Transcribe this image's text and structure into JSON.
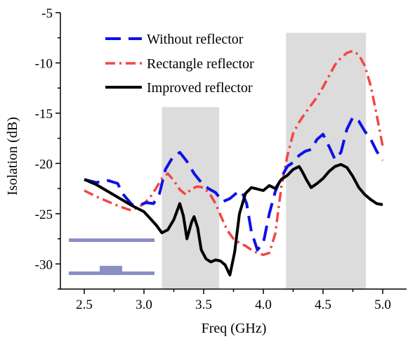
{
  "chart_data": {
    "type": "line",
    "xlabel": "Freq (GHz)",
    "ylabel": "Isolation (dB)",
    "xlim": [
      2.3,
      5.2
    ],
    "ylim": [
      -32.5,
      -5
    ],
    "xticks": [
      "2.5",
      "3.0",
      "3.5",
      "4.0",
      "4.5",
      "5.0"
    ],
    "yticks": [
      "-5",
      "-10",
      "-15",
      "-20",
      "-25",
      "-30"
    ],
    "grid": false,
    "legend_position": "top-left",
    "shaded_bands": [
      {
        "x0": 3.15,
        "x1": 3.63,
        "y0": -32.5,
        "y1": -14.4
      },
      {
        "x0": 4.19,
        "x1": 4.86,
        "y0": -32.5,
        "y1": -7.0
      }
    ],
    "series": [
      {
        "name": "Without reflector",
        "color": "#1010e8",
        "style": "dash",
        "x": [
          2.5,
          2.6,
          2.7,
          2.78,
          2.82,
          2.9,
          2.97,
          3.02,
          3.08,
          3.13,
          3.18,
          3.24,
          3.3,
          3.36,
          3.42,
          3.48,
          3.54,
          3.6,
          3.66,
          3.72,
          3.78,
          3.82,
          3.86,
          3.9,
          3.95,
          4.0,
          4.05,
          4.1,
          4.15,
          4.2,
          4.25,
          4.3,
          4.35,
          4.4,
          4.45,
          4.5,
          4.55,
          4.6,
          4.65,
          4.7,
          4.75,
          4.8,
          4.85,
          4.9,
          4.95,
          5.0
        ],
        "y": [
          -21.6,
          -21.9,
          -21.7,
          -22.0,
          -23.0,
          -24.1,
          -24.1,
          -23.9,
          -24.0,
          -23.0,
          -20.6,
          -19.4,
          -18.9,
          -19.8,
          -21.0,
          -21.9,
          -22.5,
          -22.9,
          -23.8,
          -23.5,
          -22.9,
          -22.8,
          -24.0,
          -26.8,
          -28.6,
          -27.9,
          -25.0,
          -22.8,
          -21.4,
          -20.3,
          -19.9,
          -19.2,
          -18.8,
          -18.6,
          -17.6,
          -17.1,
          -18.3,
          -19.6,
          -18.9,
          -16.6,
          -15.4,
          -15.8,
          -16.8,
          -17.6,
          -18.8,
          -19.7
        ]
      },
      {
        "name": "Rectangle reflector",
        "color": "#f24646",
        "style": "dashdot",
        "x": [
          2.5,
          2.6,
          2.7,
          2.8,
          2.9,
          3.0,
          3.05,
          3.1,
          3.15,
          3.2,
          3.25,
          3.3,
          3.35,
          3.4,
          3.45,
          3.5,
          3.55,
          3.6,
          3.65,
          3.7,
          3.75,
          3.8,
          3.85,
          3.9,
          3.95,
          4.0,
          4.05,
          4.1,
          4.15,
          4.2,
          4.25,
          4.3,
          4.35,
          4.4,
          4.45,
          4.5,
          4.55,
          4.6,
          4.65,
          4.7,
          4.75,
          4.8,
          4.85,
          4.9,
          4.95,
          5.0
        ],
        "y": [
          -22.7,
          -23.3,
          -23.8,
          -24.3,
          -24.7,
          -24.0,
          -23.4,
          -22.5,
          -21.5,
          -21.0,
          -21.7,
          -22.6,
          -23.1,
          -22.5,
          -22.3,
          -22.4,
          -23.0,
          -24.0,
          -25.4,
          -26.7,
          -27.5,
          -27.9,
          -28.2,
          -28.6,
          -28.9,
          -29.1,
          -28.9,
          -27.0,
          -22.4,
          -19.3,
          -17.0,
          -15.9,
          -15.0,
          -14.2,
          -13.4,
          -12.4,
          -11.3,
          -10.2,
          -9.5,
          -9.0,
          -8.8,
          -9.2,
          -10.3,
          -12.3,
          -15.2,
          -18.3
        ]
      },
      {
        "name": "Improved reflector",
        "color": "#000000",
        "style": "solid",
        "x": [
          2.5,
          2.6,
          2.7,
          2.8,
          2.9,
          3.0,
          3.1,
          3.15,
          3.2,
          3.25,
          3.3,
          3.33,
          3.36,
          3.4,
          3.42,
          3.45,
          3.48,
          3.52,
          3.56,
          3.6,
          3.64,
          3.68,
          3.72,
          3.76,
          3.8,
          3.85,
          3.9,
          4.0,
          4.05,
          4.1,
          4.15,
          4.2,
          4.25,
          4.3,
          4.33,
          4.36,
          4.4,
          4.45,
          4.5,
          4.55,
          4.6,
          4.65,
          4.7,
          4.75,
          4.8,
          4.85,
          4.9,
          4.95,
          5.0
        ],
        "y": [
          -21.6,
          -22.1,
          -22.8,
          -23.5,
          -24.2,
          -24.8,
          -26.1,
          -26.9,
          -26.6,
          -25.6,
          -24.0,
          -25.2,
          -27.5,
          -25.8,
          -25.3,
          -26.4,
          -28.6,
          -29.5,
          -29.8,
          -29.6,
          -29.7,
          -30.1,
          -31.1,
          -28.8,
          -25.0,
          -23.0,
          -22.4,
          -22.7,
          -22.2,
          -22.5,
          -21.6,
          -21.2,
          -20.6,
          -20.3,
          -20.9,
          -21.6,
          -22.4,
          -22.0,
          -21.5,
          -20.8,
          -20.3,
          -20.1,
          -20.4,
          -21.3,
          -22.4,
          -23.1,
          -23.6,
          -24.0,
          -24.1
        ]
      }
    ]
  },
  "inset": {
    "color": "#8a8fc4"
  }
}
